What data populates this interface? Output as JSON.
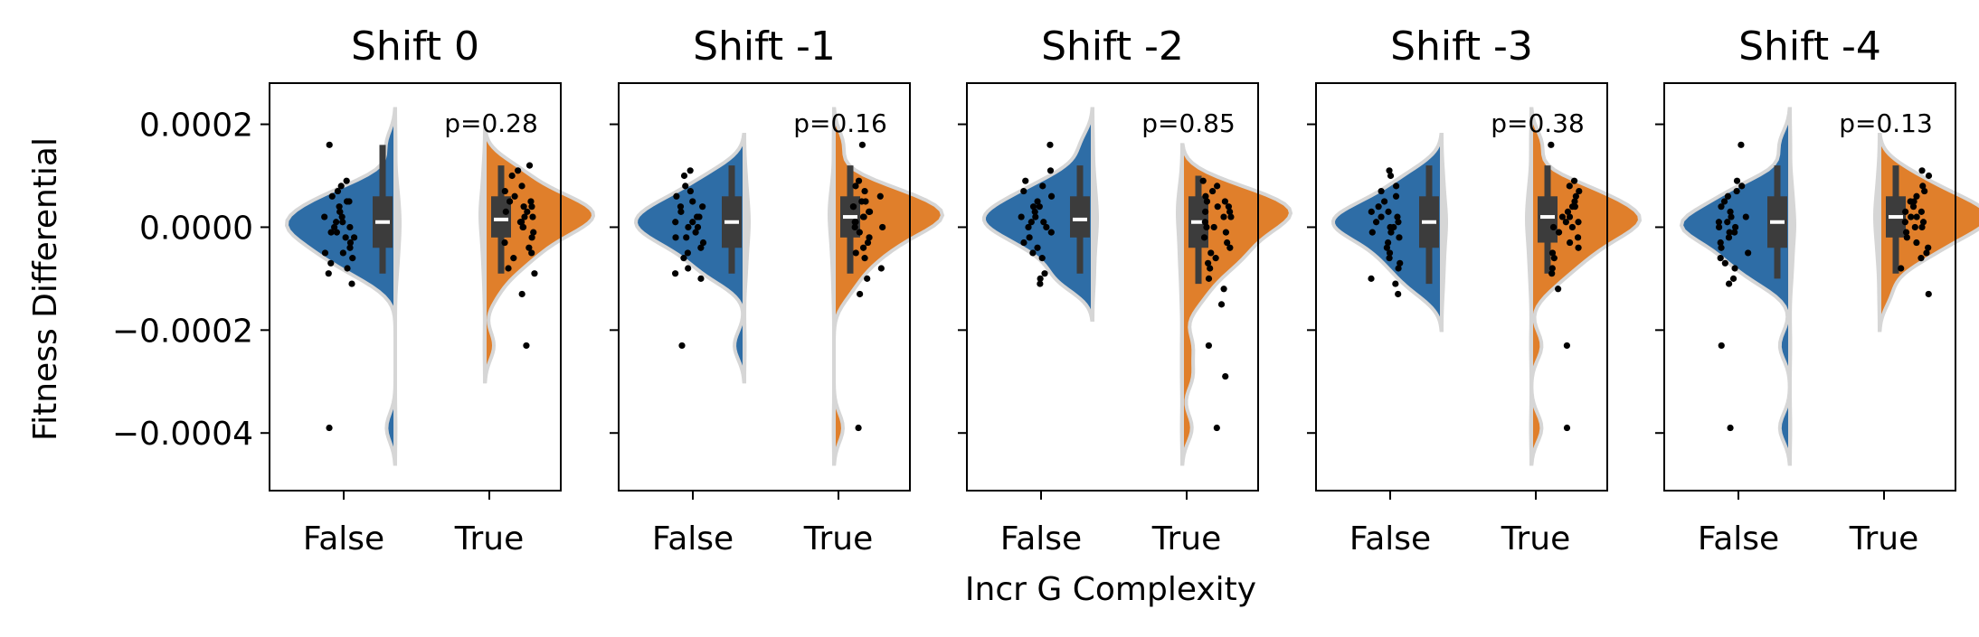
{
  "figure": {
    "xlabel": "Incr G Complexity",
    "ylabel": "Fitness Differential"
  },
  "chart_data": {
    "type": "violin",
    "categories": [
      "False",
      "True"
    ],
    "y_ticks": [
      0.0002,
      0.0,
      -0.0002,
      -0.0004
    ],
    "y_tick_labels": [
      "0.0002",
      "0.0000",
      "−0.0002",
      "−0.0004"
    ],
    "ylim": [
      -0.000512,
      0.00028
    ],
    "colors": {
      "False": "#2e6da6",
      "True": "#e07f2b"
    },
    "panels": [
      {
        "title": "Shift 0",
        "p_label": "p=0.28",
        "groups": [
          {
            "category": "False",
            "box": {
              "q1": -4e-05,
              "median": 1e-05,
              "q3": 6e-05,
              "whisker_low": -9e-05,
              "whisker_high": 0.00016
            },
            "points": [
              0.00016,
              9e-05,
              8e-05,
              7e-05,
              6e-05,
              5e-05,
              5e-05,
              4e-05,
              3e-05,
              3e-05,
              2e-05,
              2e-05,
              1e-05,
              1e-05,
              0.0,
              0.0,
              -1e-05,
              -1e-05,
              -2e-05,
              -2e-05,
              -3e-05,
              -4e-05,
              -5e-05,
              -5e-05,
              -6e-05,
              -7e-05,
              -8e-05,
              -9e-05,
              -0.00011,
              -0.00039
            ]
          },
          {
            "category": "True",
            "box": {
              "q1": -2e-05,
              "median": 1.5e-05,
              "q3": 6e-05,
              "whisker_low": -9e-05,
              "whisker_high": 0.00012
            },
            "points": [
              0.00012,
              0.00011,
              0.0001,
              8e-05,
              7e-05,
              6e-05,
              5e-05,
              5e-05,
              4e-05,
              4e-05,
              3e-05,
              3e-05,
              2e-05,
              2e-05,
              1e-05,
              1e-05,
              0.0,
              0.0,
              -1e-05,
              -2e-05,
              -3e-05,
              -4e-05,
              -5e-05,
              -6e-05,
              -8e-05,
              -9e-05,
              -0.00013,
              -0.00023
            ]
          }
        ]
      },
      {
        "title": "Shift -1",
        "p_label": "p=0.16",
        "groups": [
          {
            "category": "False",
            "box": {
              "q1": -4e-05,
              "median": 1e-05,
              "q3": 6e-05,
              "whisker_low": -9e-05,
              "whisker_high": 0.00012
            },
            "points": [
              0.00011,
              0.0001,
              8e-05,
              7e-05,
              6e-05,
              5e-05,
              4e-05,
              4e-05,
              3e-05,
              2e-05,
              2e-05,
              1e-05,
              1e-05,
              0.0,
              0.0,
              -1e-05,
              -2e-05,
              -2e-05,
              -3e-05,
              -4e-05,
              -5e-05,
              -6e-05,
              -8e-05,
              -9e-05,
              -0.0001,
              -0.00023
            ]
          },
          {
            "category": "True",
            "box": {
              "q1": -2e-05,
              "median": 2e-05,
              "q3": 6e-05,
              "whisker_low": -9e-05,
              "whisker_high": 0.00012
            },
            "points": [
              0.00016,
              9e-05,
              8e-05,
              7e-05,
              6e-05,
              5e-05,
              5e-05,
              4e-05,
              4e-05,
              3e-05,
              3e-05,
              2e-05,
              2e-05,
              1e-05,
              1e-05,
              0.0,
              0.0,
              -1e-05,
              -2e-05,
              -3e-05,
              -4e-05,
              -5e-05,
              -6e-05,
              -8e-05,
              -0.0001,
              -0.00013,
              -0.00039
            ]
          }
        ]
      },
      {
        "title": "Shift -2",
        "p_label": "p=0.85",
        "groups": [
          {
            "category": "False",
            "box": {
              "q1": -2e-05,
              "median": 1.5e-05,
              "q3": 6e-05,
              "whisker_low": -9e-05,
              "whisker_high": 0.00012
            },
            "points": [
              0.00016,
              0.00011,
              9e-05,
              8e-05,
              7e-05,
              6e-05,
              5e-05,
              4e-05,
              4e-05,
              3e-05,
              2e-05,
              2e-05,
              1e-05,
              1e-05,
              0.0,
              0.0,
              -1e-05,
              -2e-05,
              -3e-05,
              -4e-05,
              -5e-05,
              -6e-05,
              -9e-05,
              -0.0001,
              -0.00011
            ]
          },
          {
            "category": "True",
            "box": {
              "q1": -4e-05,
              "median": 1e-05,
              "q3": 6e-05,
              "whisker_low": -0.00011,
              "whisker_high": 0.0001
            },
            "points": [
              9e-05,
              8e-05,
              7e-05,
              6e-05,
              5e-05,
              5e-05,
              4e-05,
              4e-05,
              3e-05,
              3e-05,
              2e-05,
              2e-05,
              1e-05,
              0.0,
              0.0,
              -1e-05,
              -2e-05,
              -3e-05,
              -4e-05,
              -5e-05,
              -6e-05,
              -7e-05,
              -8e-05,
              -0.0001,
              -0.00012,
              -0.00015,
              -0.00023,
              -0.00029,
              -0.00039
            ]
          }
        ]
      },
      {
        "title": "Shift -3",
        "p_label": "p=0.38",
        "groups": [
          {
            "category": "False",
            "box": {
              "q1": -4e-05,
              "median": 1e-05,
              "q3": 6e-05,
              "whisker_low": -0.00011,
              "whisker_high": 0.00012
            },
            "points": [
              0.00011,
              0.0001,
              8e-05,
              7e-05,
              6e-05,
              5e-05,
              4e-05,
              3e-05,
              3e-05,
              2e-05,
              2e-05,
              1e-05,
              1e-05,
              0.0,
              0.0,
              -1e-05,
              -1e-05,
              -2e-05,
              -3e-05,
              -4e-05,
              -5e-05,
              -6e-05,
              -7e-05,
              -8e-05,
              -0.0001,
              -0.00011,
              -0.00013
            ]
          },
          {
            "category": "True",
            "box": {
              "q1": -3e-05,
              "median": 2e-05,
              "q3": 6e-05,
              "whisker_low": -9e-05,
              "whisker_high": 0.00012
            },
            "points": [
              0.00016,
              9e-05,
              8e-05,
              7e-05,
              6e-05,
              5e-05,
              4e-05,
              4e-05,
              3e-05,
              2e-05,
              2e-05,
              1e-05,
              1e-05,
              0.0,
              0.0,
              -1e-05,
              -2e-05,
              -3e-05,
              -4e-05,
              -5e-05,
              -6e-05,
              -8e-05,
              -9e-05,
              -0.00012,
              -0.00023,
              -0.00039
            ]
          }
        ]
      },
      {
        "title": "Shift -4",
        "p_label": "p=0.13",
        "groups": [
          {
            "category": "False",
            "box": {
              "q1": -4e-05,
              "median": 1e-05,
              "q3": 6e-05,
              "whisker_low": -0.0001,
              "whisker_high": 0.00012
            },
            "points": [
              0.00016,
              9e-05,
              8e-05,
              7e-05,
              6e-05,
              5e-05,
              4e-05,
              3e-05,
              2e-05,
              2e-05,
              1e-05,
              1e-05,
              0.0,
              0.0,
              -1e-05,
              -1e-05,
              -2e-05,
              -3e-05,
              -4e-05,
              -5e-05,
              -6e-05,
              -7e-05,
              -8e-05,
              -0.0001,
              -0.00011,
              -0.00023,
              -0.00039
            ]
          },
          {
            "category": "True",
            "box": {
              "q1": -2e-05,
              "median": 2e-05,
              "q3": 6e-05,
              "whisker_low": -9e-05,
              "whisker_high": 0.00012
            },
            "points": [
              0.00011,
              0.0001,
              8e-05,
              7e-05,
              6e-05,
              5e-05,
              5e-05,
              4e-05,
              3e-05,
              3e-05,
              2e-05,
              2e-05,
              1e-05,
              1e-05,
              0.0,
              0.0,
              -1e-05,
              -2e-05,
              -3e-05,
              -4e-05,
              -5e-05,
              -6e-05,
              -8e-05,
              -0.00013
            ]
          }
        ]
      }
    ]
  }
}
